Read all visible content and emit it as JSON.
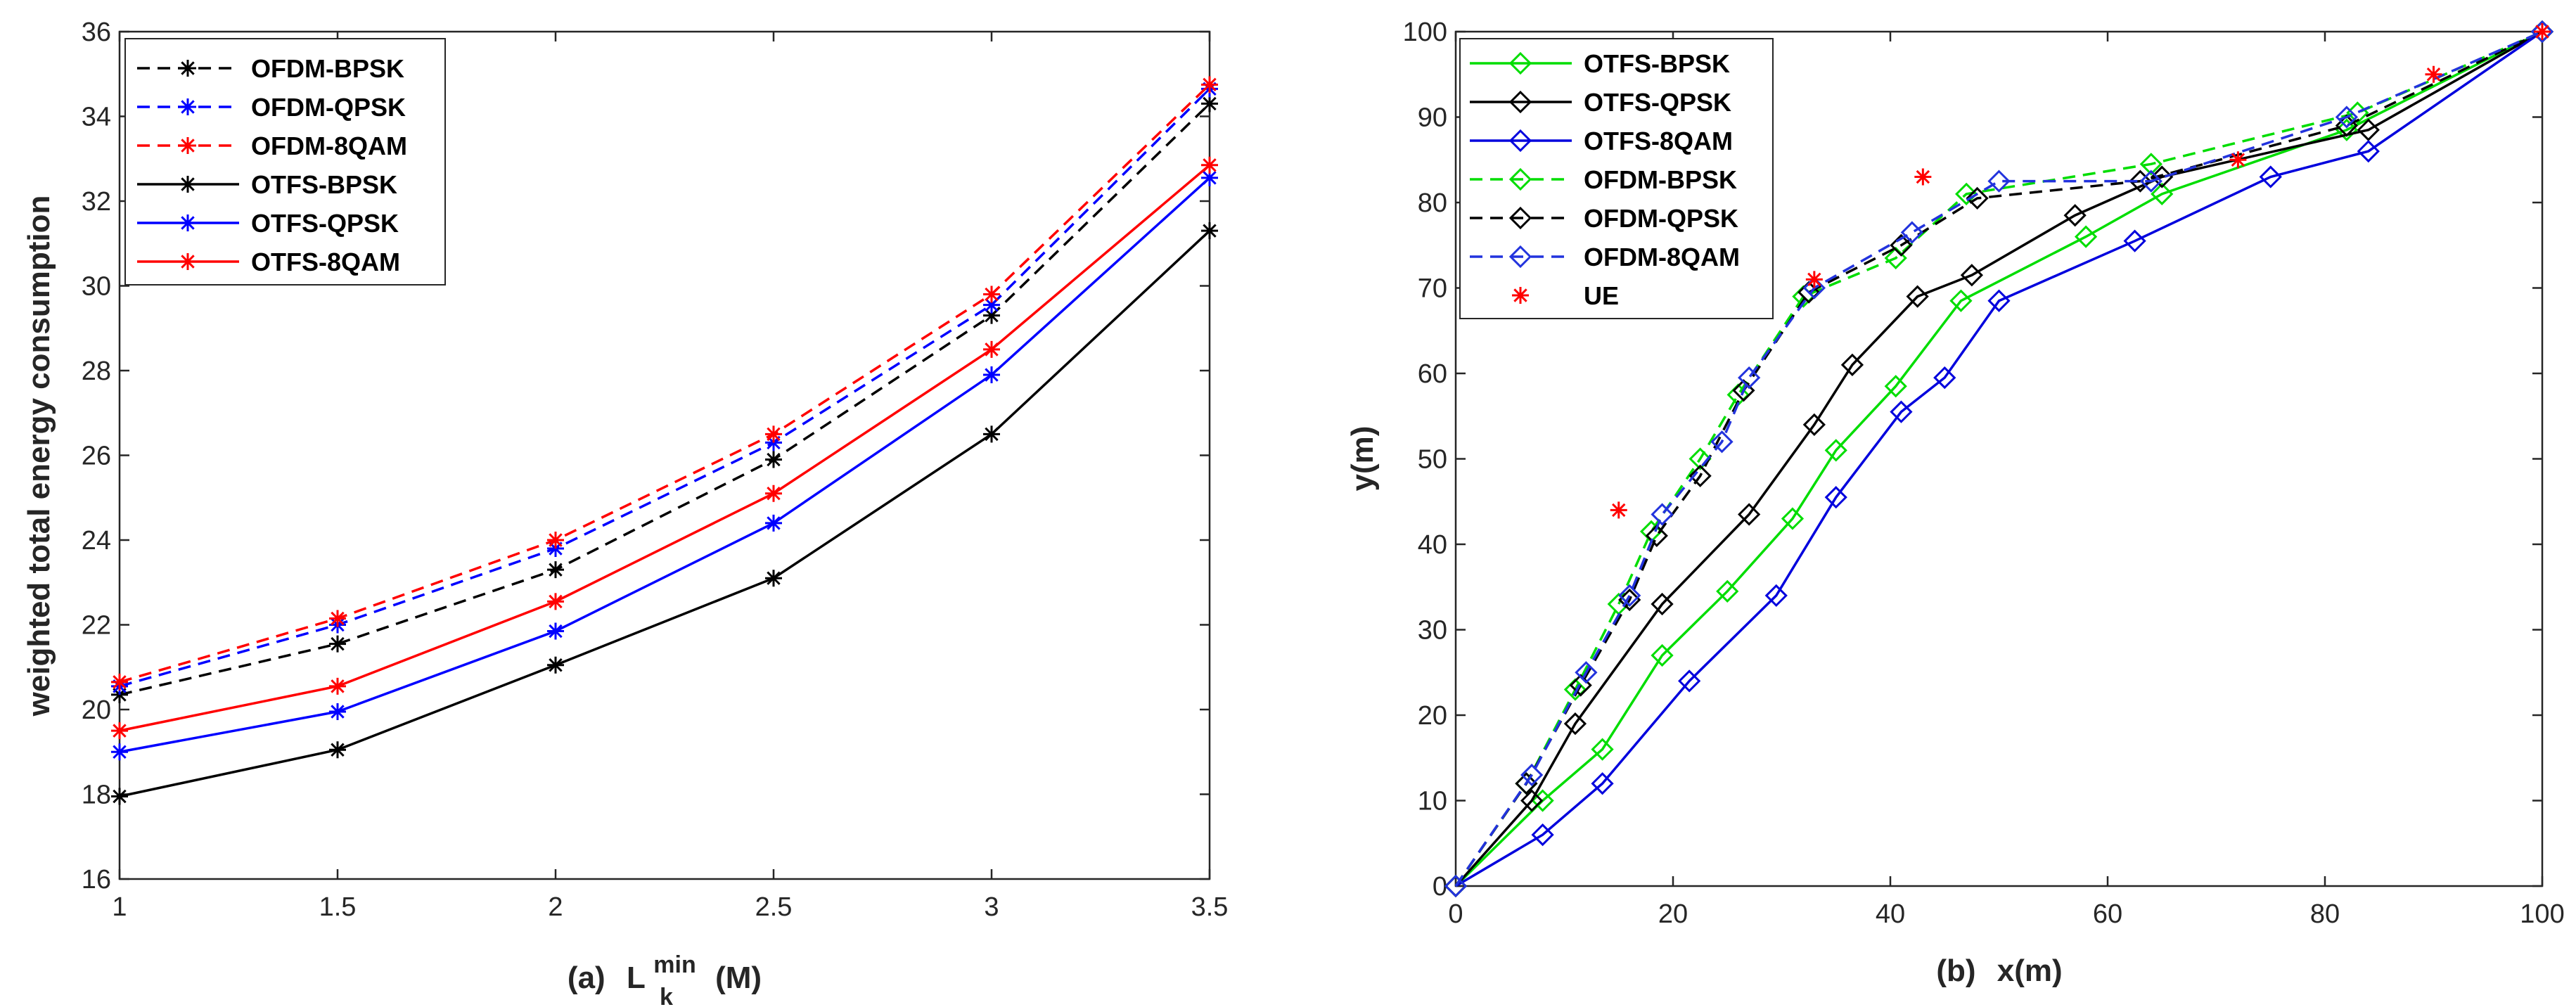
{
  "chart_data": [
    {
      "type": "line",
      "xlabel_prefix": "(a)",
      "xlabel_main": "L",
      "xlabel_sub": "k",
      "xlabel_sup": "min",
      "xlabel_unit": "(M)",
      "ylabel": "weighted total energy consumption",
      "xlim": [
        1,
        3.5
      ],
      "ylim": [
        16,
        36
      ],
      "xticks": [
        "1",
        "1.5",
        "2",
        "2.5",
        "3",
        "3.5"
      ],
      "yticks": [
        "16",
        "18",
        "20",
        "22",
        "24",
        "26",
        "28",
        "30",
        "32",
        "34",
        "36"
      ],
      "x": [
        1,
        1.5,
        2,
        2.5,
        3,
        3.5
      ],
      "series": [
        {
          "name": "OFDM-BPSK",
          "color": "#000000",
          "dash": "dashed",
          "marker": "asterisk",
          "values": [
            20.35,
            21.55,
            23.3,
            25.9,
            29.3,
            34.3
          ]
        },
        {
          "name": "OFDM-QPSK",
          "color": "#0000ff",
          "dash": "dashed",
          "marker": "asterisk",
          "values": [
            20.55,
            22.0,
            23.8,
            26.3,
            29.55,
            34.65
          ]
        },
        {
          "name": "OFDM-8QAM",
          "color": "#ff0000",
          "dash": "dashed",
          "marker": "asterisk",
          "values": [
            20.65,
            22.15,
            24.0,
            26.5,
            29.8,
            34.75
          ]
        },
        {
          "name": "OTFS-BPSK",
          "color": "#000000",
          "dash": "solid",
          "marker": "asterisk",
          "values": [
            17.95,
            19.05,
            21.05,
            23.1,
            26.5,
            31.3
          ]
        },
        {
          "name": "OTFS-QPSK",
          "color": "#0000ff",
          "dash": "solid",
          "marker": "asterisk",
          "values": [
            19.0,
            19.95,
            21.85,
            24.4,
            27.9,
            32.55
          ]
        },
        {
          "name": "OTFS-8QAM",
          "color": "#ff0000",
          "dash": "solid",
          "marker": "asterisk",
          "values": [
            19.5,
            20.55,
            22.55,
            25.1,
            28.5,
            32.85
          ]
        }
      ]
    },
    {
      "type": "line",
      "xlabel_prefix": "(b)",
      "xlabel_main": "x(m)",
      "ylabel": "y(m)",
      "xlim": [
        0,
        100
      ],
      "ylim": [
        0,
        100
      ],
      "xticks": [
        "0",
        "20",
        "40",
        "60",
        "80",
        "100"
      ],
      "yticks": [
        "0",
        "10",
        "20",
        "30",
        "40",
        "50",
        "60",
        "70",
        "80",
        "90",
        "100"
      ],
      "series": [
        {
          "name": "OTFS-BPSK",
          "color": "#00dd00",
          "dash": "solid",
          "marker": "diamond",
          "points": [
            [
              0,
              0
            ],
            [
              8,
              10
            ],
            [
              13.5,
              16
            ],
            [
              19,
              27
            ],
            [
              25,
              34.5
            ],
            [
              31,
              43
            ],
            [
              35,
              51
            ],
            [
              40.5,
              58.5
            ],
            [
              46.5,
              68.5
            ],
            [
              58,
              76
            ],
            [
              65,
              81
            ],
            [
              82,
              88.5
            ],
            [
              100,
              100
            ]
          ]
        },
        {
          "name": "OTFS-QPSK",
          "color": "#000000",
          "dash": "solid",
          "marker": "diamond",
          "points": [
            [
              0,
              0
            ],
            [
              7,
              10
            ],
            [
              11,
              19
            ],
            [
              19,
              33
            ],
            [
              27,
              43.5
            ],
            [
              33,
              54
            ],
            [
              36.5,
              61
            ],
            [
              42.5,
              69
            ],
            [
              47.5,
              71.5
            ],
            [
              57,
              78.5
            ],
            [
              65,
              83
            ],
            [
              84,
              88.5
            ],
            [
              100,
              100
            ]
          ]
        },
        {
          "name": "OTFS-8QAM",
          "color": "#0000dd",
          "dash": "solid",
          "marker": "diamond",
          "points": [
            [
              0,
              0
            ],
            [
              8,
              6
            ],
            [
              13.5,
              12
            ],
            [
              21.5,
              24
            ],
            [
              29.5,
              34
            ],
            [
              35,
              45.5
            ],
            [
              41,
              55.5
            ],
            [
              45,
              59.5
            ],
            [
              50,
              68.5
            ],
            [
              62.5,
              75.5
            ],
            [
              75,
              83
            ],
            [
              84,
              86
            ],
            [
              100,
              100
            ]
          ]
        },
        {
          "name": "OFDM-BPSK",
          "color": "#00dd00",
          "dash": "dashed",
          "marker": "diamond",
          "points": [
            [
              0,
              0
            ],
            [
              6.5,
              12
            ],
            [
              11,
              23
            ],
            [
              15,
              33
            ],
            [
              18,
              41.5
            ],
            [
              22.5,
              50
            ],
            [
              26,
              57.5
            ],
            [
              32,
              69
            ],
            [
              40.5,
              73.5
            ],
            [
              47,
              81
            ],
            [
              64,
              84.5
            ],
            [
              83,
              90.5
            ],
            [
              100,
              100
            ]
          ]
        },
        {
          "name": "OFDM-QPSK",
          "color": "#000000",
          "dash": "dashed",
          "marker": "diamond",
          "points": [
            [
              0,
              0
            ],
            [
              6.5,
              12
            ],
            [
              11.5,
              23.5
            ],
            [
              16,
              33.5
            ],
            [
              18.5,
              41
            ],
            [
              22.5,
              48
            ],
            [
              26.5,
              58
            ],
            [
              32.5,
              69.5
            ],
            [
              41,
              75
            ],
            [
              48,
              80.5
            ],
            [
              63,
              82.5
            ],
            [
              82,
              89
            ],
            [
              100,
              100
            ]
          ]
        },
        {
          "name": "OFDM-8QAM",
          "color": "#2233dd",
          "dash": "dashed",
          "marker": "diamond",
          "points": [
            [
              0,
              0
            ],
            [
              7,
              13
            ],
            [
              12,
              25
            ],
            [
              16,
              34
            ],
            [
              19,
              43.5
            ],
            [
              24.5,
              52
            ],
            [
              27,
              59.5
            ],
            [
              33,
              70
            ],
            [
              42,
              76.5
            ],
            [
              50,
              82.5
            ],
            [
              64,
              82.5
            ],
            [
              82,
              90
            ],
            [
              100,
              100
            ]
          ]
        },
        {
          "name": "UE",
          "color": "#ff0000",
          "dash": "none",
          "marker": "asterisk",
          "points": [
            [
              15,
              44
            ],
            [
              33,
              71
            ],
            [
              43,
              83
            ],
            [
              72,
              85
            ],
            [
              90,
              95
            ],
            [
              100,
              100
            ]
          ]
        }
      ]
    }
  ]
}
